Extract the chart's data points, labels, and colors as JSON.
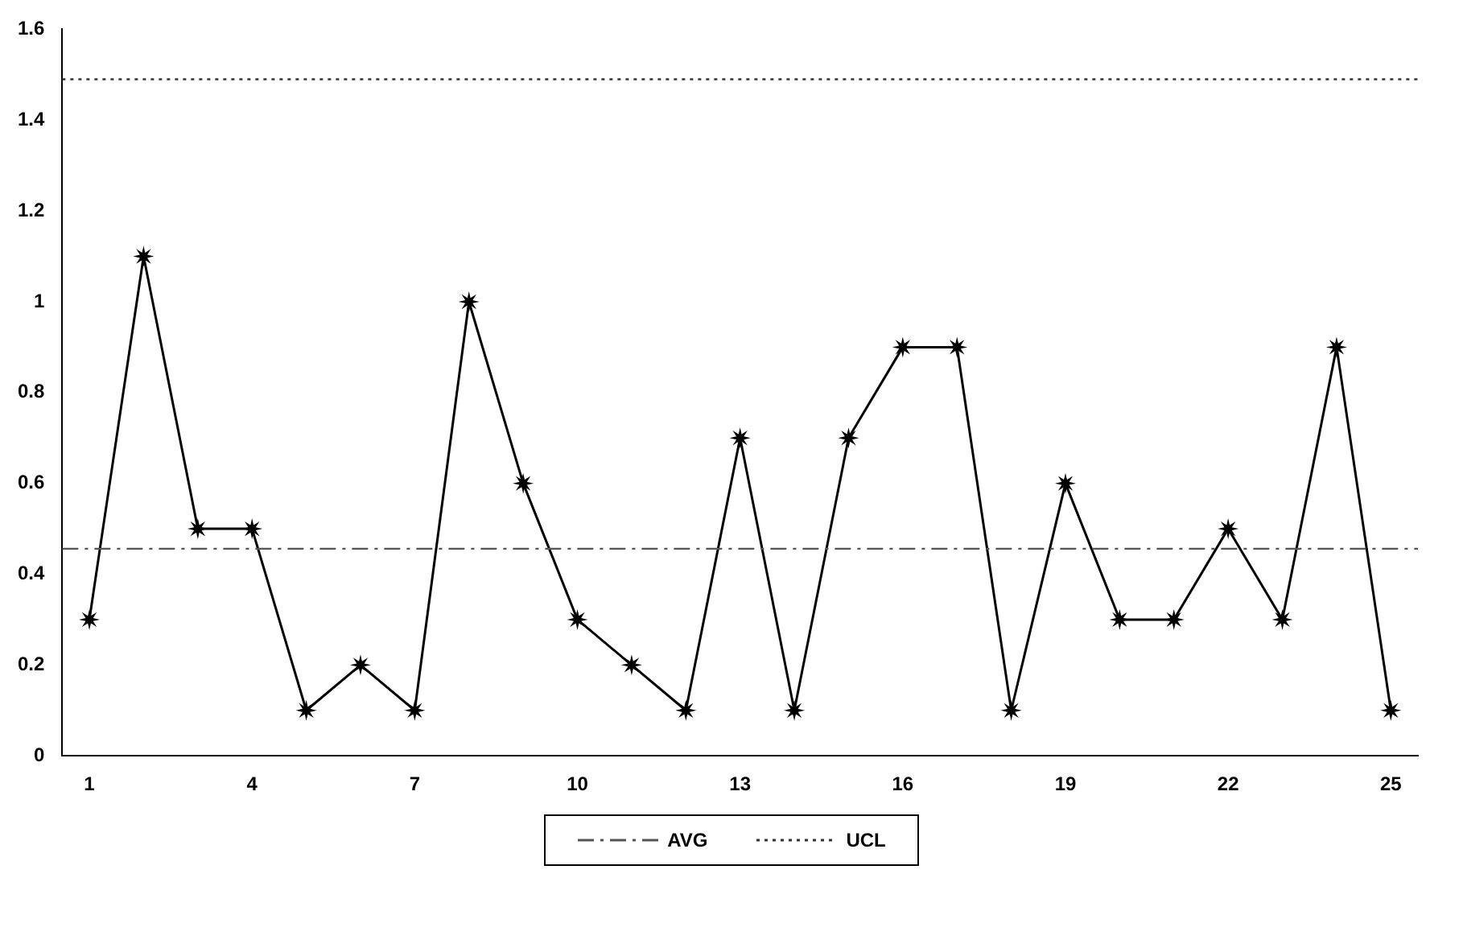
{
  "chart_data": {
    "type": "line",
    "categories": [
      "1",
      null,
      null,
      "4",
      null,
      null,
      "7",
      null,
      null,
      "10",
      null,
      null,
      "13",
      null,
      null,
      "16",
      null,
      null,
      "19",
      null,
      null,
      "22",
      null,
      null,
      "25"
    ],
    "series": [
      {
        "color": "#000000",
        "values": [
          0.3,
          1.1,
          0.5,
          0.5,
          0.1,
          0.2,
          0.1,
          1.0,
          0.6,
          0.3,
          0.2,
          0.1,
          0.7,
          0.1,
          0.7,
          0.9,
          0.9,
          0.1,
          0.6,
          0.3,
          0.3,
          0.5,
          0.3,
          0.9,
          0.1
        ]
      }
    ],
    "ylim": [
      0,
      1.6
    ],
    "yticks": [
      0,
      0.2,
      0.4,
      0.6,
      0.8,
      1,
      1.2,
      1.4,
      1.6
    ],
    "grid": false,
    "marker": "star",
    "line_style": "solid",
    "legend": "bottom",
    "ref_lines": [
      {
        "axis": "y",
        "value": 0.456,
        "label": "AVG",
        "color": "#555555",
        "line_style": "dashdot"
      },
      {
        "axis": "y",
        "value": 1.49,
        "label": "UCL",
        "color": "#333333",
        "line_style": "dotted"
      }
    ]
  }
}
